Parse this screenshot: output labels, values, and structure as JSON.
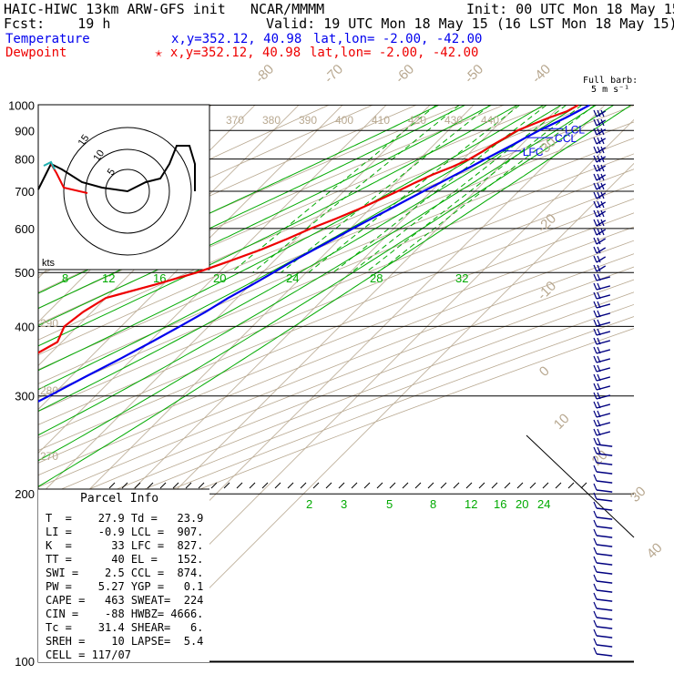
{
  "header": {
    "line1_left": "HAIC-HIWC 13km ARW-GFS init   NCAR/MMMM",
    "line1_right": "Init: 00 UTC Mon 18 May 15",
    "line2_left": "Fcst:    19 h",
    "line2_right": "Valid: 19 UTC Mon 18 May 15 (16 LST Mon 18 May 15)",
    "temp_label": "Temperature",
    "temp_xy": "x,y=352.12, 40.98",
    "temp_latlon": "lat,lon= -2.00, -42.00",
    "dew_label": "Dewpoint",
    "dew_xy": "✭ x,y=352.12, 40.98",
    "dew_latlon": "lat,lon= -2.00, -42.00"
  },
  "colors": {
    "temperature": "#0000ee",
    "dewpoint": "#ee0000",
    "isotherm": "#b8a890",
    "dry_adiabat": "#b8a890",
    "moist_adiabat": "#00aa00",
    "mixing_ratio": "#00aa00",
    "isobar": "#000000",
    "barb": "#000080"
  },
  "barb_note": [
    "Full barb:",
    "5 m s⁻¹"
  ],
  "hodograph": {
    "ring_labels": [
      "5",
      "10",
      "15"
    ],
    "units": "kts"
  },
  "parcel": {
    "title": "Parcel Info",
    "lines": [
      "T  =    27.9 Td =   23.9",
      "LI =    -0.9 LCL =  907.",
      "K  =      33 LFC =  827.",
      "TT =      40 EL =   152.",
      "SWI =    2.5 CCL =  874.",
      "PW =    5.27 YGP =   0.1",
      "CAPE =   463 SWEAT=  224",
      "CIN =    -88 HWBZ= 4666.",
      "Tc =    31.4 SHEAR=   6.",
      "SREH =    10 LAPSE=  5.4",
      "CELL = 117/07"
    ]
  },
  "chart_data": {
    "type": "line",
    "chart_kind": "skew-T log-P sounding",
    "y_axis": {
      "label": "pressure (hPa)",
      "scale": "log",
      "ticks": [
        100,
        200,
        300,
        400,
        500,
        600,
        700,
        800,
        900,
        1000
      ],
      "tick_labels": [
        "100",
        "200",
        "300",
        "400",
        "500",
        "600",
        "700",
        "800",
        "900",
        "1000"
      ]
    },
    "x_axis": {
      "label": "temperature (°C)",
      "skewed": true
    },
    "isotherm_labels": [
      "-80",
      "-70",
      "-60",
      "-50",
      "-40",
      "-30",
      "-20",
      "-10",
      "0",
      "10",
      "20",
      "30",
      "40"
    ],
    "theta_labels_upper": [
      "370",
      "380",
      "390",
      "400",
      "410",
      "420",
      "430",
      "440"
    ],
    "theta_labels_lower": [
      "290",
      "280",
      "270"
    ],
    "mixing_ratio_labels_upper": [
      "8",
      "12",
      "16",
      "20",
      "24",
      "28",
      "32"
    ],
    "mixing_ratio_labels_lower": [
      "2",
      "3",
      "5",
      "8",
      "12",
      "16",
      "20",
      "24"
    ],
    "series": [
      {
        "name": "Temperature",
        "color": "#0000ee",
        "points": [
          [
            1000,
            26.5
          ],
          [
            975,
            25.3
          ],
          [
            950,
            24.0
          ],
          [
            925,
            22.4
          ],
          [
            900,
            20.8
          ],
          [
            875,
            19.4
          ],
          [
            850,
            18.1
          ],
          [
            825,
            16.6
          ],
          [
            800,
            15.0
          ],
          [
            775,
            13.5
          ],
          [
            750,
            11.8
          ],
          [
            725,
            10.1
          ],
          [
            700,
            8.2
          ],
          [
            675,
            6.4
          ],
          [
            650,
            4.6
          ],
          [
            625,
            2.6
          ],
          [
            600,
            0.6
          ],
          [
            575,
            -1.3
          ],
          [
            550,
            -3.4
          ],
          [
            525,
            -5.6
          ],
          [
            500,
            -7.5
          ],
          [
            475,
            -9.6
          ],
          [
            450,
            -12.0
          ],
          [
            425,
            -14.0
          ],
          [
            400,
            -16.6
          ],
          [
            375,
            -19.5
          ],
          [
            350,
            -22.8
          ],
          [
            325,
            -26.6
          ],
          [
            300,
            -30.6
          ],
          [
            275,
            -35.2
          ],
          [
            250,
            -39.6
          ],
          [
            225,
            -44.4
          ],
          [
            200,
            -50.0
          ],
          [
            175,
            -57.0
          ],
          [
            150,
            -65.0
          ],
          [
            125,
            -74.0
          ],
          [
            110,
            -80.0
          ],
          [
            100,
            -82.0
          ]
        ]
      },
      {
        "name": "Dewpoint",
        "color": "#ee0000",
        "points": [
          [
            1000,
            23.9
          ],
          [
            975,
            22.8
          ],
          [
            950,
            20.2
          ],
          [
            925,
            18.0
          ],
          [
            900,
            15.8
          ],
          [
            875,
            14.8
          ],
          [
            850,
            13.6
          ],
          [
            825,
            12.6
          ],
          [
            800,
            11.4
          ],
          [
            775,
            9.3
          ],
          [
            750,
            6.5
          ],
          [
            725,
            4.3
          ],
          [
            700,
            2.3
          ],
          [
            675,
            0.0
          ],
          [
            650,
            -2.5
          ],
          [
            625,
            -5.5
          ],
          [
            600,
            -9.0
          ],
          [
            575,
            -12.0
          ],
          [
            550,
            -15.5
          ],
          [
            525,
            -20.0
          ],
          [
            500,
            -25.0
          ],
          [
            475,
            -32.0
          ],
          [
            450,
            -40.0
          ],
          [
            425,
            -42.0
          ],
          [
            400,
            -43.0
          ],
          [
            375,
            -41.0
          ],
          [
            350,
            -44.0
          ],
          [
            325,
            -42.0
          ],
          [
            300,
            -45.0
          ],
          [
            275,
            -47.0
          ],
          [
            250,
            -51.0
          ],
          [
            225,
            -52.0
          ],
          [
            200,
            -55.0
          ],
          [
            175,
            -66.0
          ],
          [
            150,
            -76.0
          ],
          [
            125,
            -82.0
          ],
          [
            110,
            -88.0
          ],
          [
            100,
            -90.0
          ]
        ]
      }
    ],
    "level_markers": [
      {
        "label": "EL",
        "pressure": 152
      },
      {
        "label": "LFC",
        "pressure": 827
      },
      {
        "label": "CCL",
        "pressure": 874
      },
      {
        "label": "LCL",
        "pressure": 907
      }
    ]
  }
}
